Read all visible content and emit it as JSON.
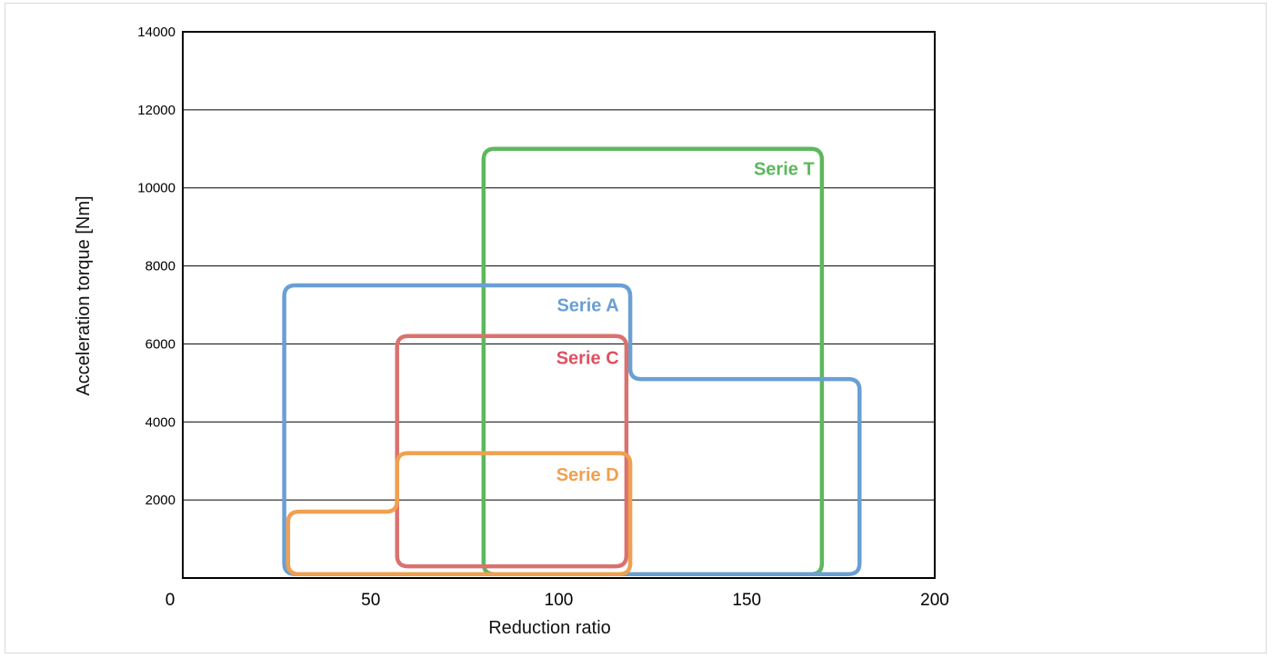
{
  "chart_data": {
    "type": "area",
    "title": "",
    "xlabel": "Reduction ratio",
    "ylabel": "Acceleration torque [Nm]",
    "xlim": [
      0,
      200
    ],
    "ylim": [
      0,
      14000
    ],
    "xticks": [
      0,
      50,
      100,
      150,
      200
    ],
    "yticks": [
      2000,
      4000,
      6000,
      8000,
      10000,
      12000,
      14000
    ],
    "grid": "horizontal",
    "series": [
      {
        "name": "Serie T",
        "color": "#5cb85c",
        "label_at": [
          168,
          10500
        ],
        "outline": [
          [
            80,
            100
          ],
          [
            80,
            11000
          ],
          [
            170,
            11000
          ],
          [
            170,
            100
          ]
        ]
      },
      {
        "name": "Serie A",
        "color": "#6a9fd4",
        "label_at": [
          116,
          7000
        ],
        "outline": [
          [
            27,
            100
          ],
          [
            27,
            7500
          ],
          [
            119,
            7500
          ],
          [
            119,
            5100
          ],
          [
            180,
            5100
          ],
          [
            180,
            100
          ]
        ]
      },
      {
        "name": "Serie C",
        "color": "#e05060",
        "outline_color": "#d9726e",
        "label_at": [
          116,
          5650
        ],
        "outline": [
          [
            57,
            300
          ],
          [
            57,
            6200
          ],
          [
            118,
            6200
          ],
          [
            118,
            300
          ]
        ]
      },
      {
        "name": "Serie D",
        "color": "#f0a050",
        "label_at": [
          116,
          2650
        ],
        "outline": [
          [
            28,
            100
          ],
          [
            28,
            1700
          ],
          [
            57,
            1700
          ],
          [
            57,
            3200
          ],
          [
            119,
            3200
          ],
          [
            119,
            100
          ]
        ]
      }
    ]
  }
}
